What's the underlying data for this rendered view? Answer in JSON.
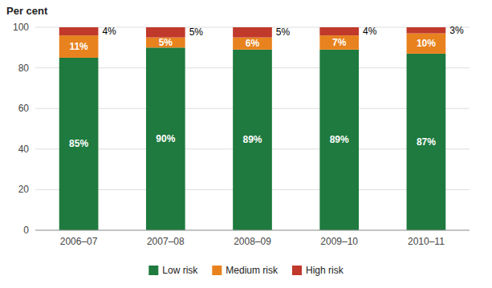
{
  "chart_data": {
    "type": "bar",
    "stacked": true,
    "ylabel": "Per cent",
    "categories": [
      "2006–07",
      "2007–08",
      "2008–09",
      "2009–10",
      "2010–11"
    ],
    "series": [
      {
        "name": "Low risk",
        "color": "#1e7a3e",
        "values": [
          85,
          90,
          89,
          89,
          87
        ],
        "value_labels": [
          "85%",
          "90%",
          "89%",
          "89%",
          "87%"
        ]
      },
      {
        "name": "Medium risk",
        "color": "#e8821e",
        "values": [
          11,
          5,
          6,
          7,
          10
        ],
        "value_labels": [
          "11%",
          "5%",
          "6%",
          "7%",
          "10%"
        ]
      },
      {
        "name": "High risk",
        "color": "#c0392b",
        "values": [
          4,
          5,
          5,
          4,
          3
        ],
        "value_labels": [
          "4%",
          "5%",
          "5%",
          "4%",
          "3%"
        ]
      }
    ],
    "ylim": [
      0,
      100
    ],
    "yticks": [
      0,
      20,
      40,
      60,
      80,
      100
    ],
    "grid": true,
    "legend": "bottom",
    "data_labels": true
  }
}
